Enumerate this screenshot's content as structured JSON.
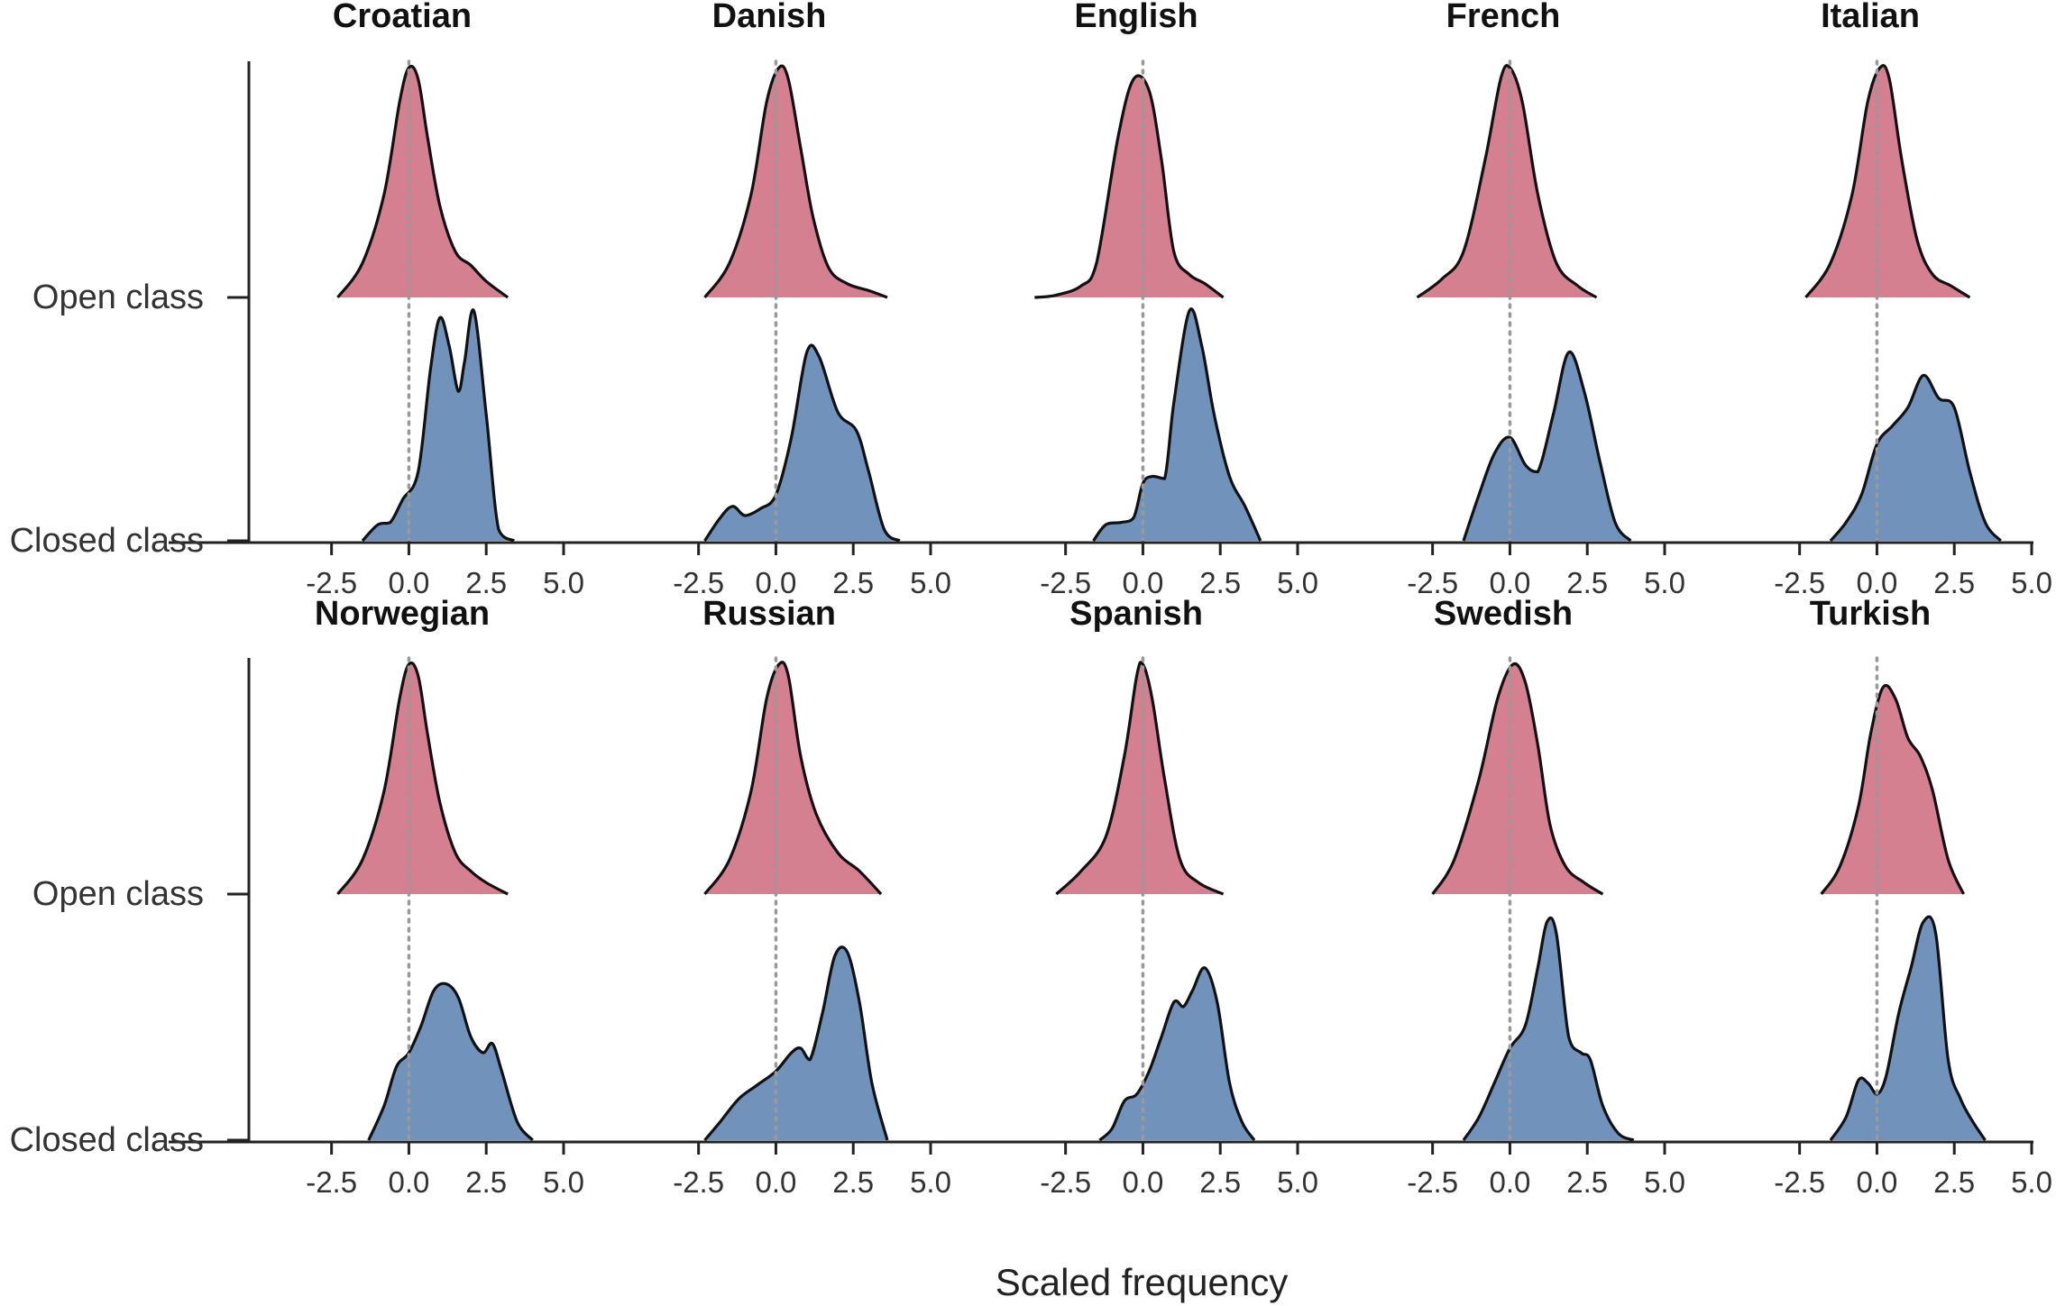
{
  "chart_data": {
    "type": "ridgeline-density",
    "xlabel": "Scaled frequency",
    "ylabels": [
      "Open class",
      "Closed class"
    ],
    "x_ticks": [
      -2.5,
      0.0,
      2.5,
      5.0
    ],
    "x_tick_labels": [
      "-2.5",
      "0.0",
      "2.5",
      "5.0"
    ],
    "xlim": [
      -5.2,
      5.0
    ],
    "reference_line_x": 0,
    "colors": {
      "Open class": "#d48090",
      "Closed class": "#7092bb",
      "outline": "#111111",
      "reference": "#999999"
    },
    "panels": [
      {
        "title": "Croatian",
        "open": {
          "x": [
            -2.3,
            -1.5,
            -0.8,
            -0.3,
            0.0,
            0.3,
            0.6,
            1.0,
            1.5,
            2.0,
            2.5,
            3.2
          ],
          "y": [
            0.0,
            0.15,
            0.45,
            0.85,
            1.0,
            0.95,
            0.7,
            0.4,
            0.2,
            0.14,
            0.07,
            0.0
          ]
        },
        "closed": {
          "x": [
            -1.5,
            -1.0,
            -0.6,
            -0.2,
            0.3,
            0.7,
            1.0,
            1.3,
            1.6,
            1.8,
            2.1,
            2.5,
            2.9,
            3.4
          ],
          "y": [
            0.0,
            0.07,
            0.08,
            0.18,
            0.3,
            0.75,
            0.97,
            0.85,
            0.65,
            0.78,
            1.0,
            0.55,
            0.05,
            0.0
          ]
        }
      },
      {
        "title": "Danish",
        "open": {
          "x": [
            -2.3,
            -1.5,
            -0.8,
            -0.3,
            0.1,
            0.4,
            0.8,
            1.2,
            1.7,
            2.3,
            3.0,
            3.6
          ],
          "y": [
            0.0,
            0.15,
            0.45,
            0.85,
            1.0,
            0.95,
            0.65,
            0.35,
            0.13,
            0.06,
            0.03,
            0.0
          ]
        },
        "closed": {
          "x": [
            -2.3,
            -1.8,
            -1.4,
            -1.0,
            -0.5,
            0.0,
            0.5,
            1.0,
            1.4,
            2.0,
            2.6,
            3.0,
            3.5,
            4.0
          ],
          "y": [
            0.0,
            0.1,
            0.15,
            0.11,
            0.14,
            0.2,
            0.45,
            0.82,
            0.8,
            0.56,
            0.48,
            0.3,
            0.05,
            0.0
          ]
        }
      },
      {
        "title": "English",
        "open": {
          "x": [
            -3.5,
            -2.8,
            -2.0,
            -1.5,
            -0.8,
            -0.3,
            0.2,
            0.6,
            1.0,
            1.5,
            2.0,
            2.6
          ],
          "y": [
            0.0,
            0.01,
            0.05,
            0.15,
            0.7,
            0.95,
            0.9,
            0.6,
            0.2,
            0.1,
            0.06,
            0.0
          ]
        },
        "closed": {
          "x": [
            -1.6,
            -1.2,
            -0.7,
            -0.3,
            0.0,
            0.3,
            0.7,
            1.0,
            1.5,
            1.9,
            2.3,
            2.8,
            3.3,
            3.8
          ],
          "y": [
            0.0,
            0.07,
            0.08,
            0.1,
            0.25,
            0.28,
            0.27,
            0.6,
            1.0,
            0.85,
            0.55,
            0.28,
            0.15,
            0.0
          ]
        }
      },
      {
        "title": "French",
        "open": {
          "x": [
            -3.0,
            -2.2,
            -1.5,
            -0.8,
            -0.3,
            0.0,
            0.4,
            0.9,
            1.5,
            2.2,
            2.8
          ],
          "y": [
            0.0,
            0.08,
            0.2,
            0.6,
            0.95,
            1.0,
            0.85,
            0.45,
            0.15,
            0.05,
            0.0
          ]
        },
        "closed": {
          "x": [
            -1.5,
            -1.0,
            -0.5,
            0.0,
            0.5,
            0.9,
            1.4,
            1.9,
            2.4,
            2.9,
            3.4,
            3.9
          ],
          "y": [
            0.0,
            0.2,
            0.38,
            0.45,
            0.33,
            0.3,
            0.55,
            0.82,
            0.65,
            0.35,
            0.08,
            0.0
          ]
        }
      },
      {
        "title": "Italian",
        "open": {
          "x": [
            -2.3,
            -1.5,
            -0.8,
            -0.3,
            0.1,
            0.4,
            0.8,
            1.3,
            1.8,
            2.4,
            3.0
          ],
          "y": [
            0.0,
            0.15,
            0.45,
            0.85,
            1.0,
            0.95,
            0.6,
            0.25,
            0.1,
            0.05,
            0.0
          ]
        },
        "closed": {
          "x": [
            -1.5,
            -1.0,
            -0.5,
            0.0,
            0.5,
            1.0,
            1.5,
            2.0,
            2.5,
            3.0,
            3.5,
            4.0
          ],
          "y": [
            0.0,
            0.08,
            0.2,
            0.42,
            0.5,
            0.58,
            0.72,
            0.62,
            0.58,
            0.3,
            0.08,
            0.0
          ]
        }
      },
      {
        "title": "Norwegian",
        "open": {
          "x": [
            -2.3,
            -1.5,
            -0.8,
            -0.3,
            0.0,
            0.3,
            0.6,
            1.0,
            1.5,
            2.0,
            2.5,
            3.2
          ],
          "y": [
            0.0,
            0.15,
            0.45,
            0.85,
            1.0,
            0.95,
            0.7,
            0.4,
            0.18,
            0.1,
            0.05,
            0.0
          ]
        },
        "closed": {
          "x": [
            -1.3,
            -0.8,
            -0.4,
            0.0,
            0.4,
            0.8,
            1.2,
            1.6,
            2.0,
            2.4,
            2.7,
            3.0,
            3.5,
            4.0
          ],
          "y": [
            0.0,
            0.15,
            0.32,
            0.38,
            0.5,
            0.65,
            0.68,
            0.62,
            0.45,
            0.38,
            0.42,
            0.3,
            0.08,
            0.0
          ]
        }
      },
      {
        "title": "Russian",
        "open": {
          "x": [
            -2.3,
            -1.5,
            -0.8,
            -0.3,
            0.1,
            0.4,
            0.8,
            1.3,
            2.0,
            2.7,
            3.4
          ],
          "y": [
            0.0,
            0.15,
            0.45,
            0.85,
            1.0,
            0.95,
            0.6,
            0.35,
            0.18,
            0.1,
            0.0
          ]
        },
        "closed": {
          "x": [
            -2.3,
            -1.8,
            -1.2,
            -0.6,
            0.0,
            0.5,
            0.8,
            1.1,
            1.5,
            1.9,
            2.3,
            2.7,
            3.1,
            3.6
          ],
          "y": [
            0.0,
            0.08,
            0.18,
            0.24,
            0.3,
            0.38,
            0.4,
            0.35,
            0.55,
            0.8,
            0.82,
            0.6,
            0.25,
            0.0
          ]
        }
      },
      {
        "title": "Spanish",
        "open": {
          "x": [
            -2.8,
            -2.0,
            -1.2,
            -0.6,
            -0.2,
            0.0,
            0.3,
            0.7,
            1.2,
            1.8,
            2.6
          ],
          "y": [
            0.0,
            0.1,
            0.25,
            0.6,
            0.95,
            1.0,
            0.85,
            0.5,
            0.15,
            0.05,
            0.0
          ]
        },
        "closed": {
          "x": [
            -1.4,
            -1.0,
            -0.6,
            -0.2,
            0.2,
            0.6,
            1.0,
            1.3,
            1.6,
            2.0,
            2.4,
            2.8,
            3.2,
            3.6
          ],
          "y": [
            0.0,
            0.05,
            0.17,
            0.2,
            0.3,
            0.45,
            0.6,
            0.58,
            0.65,
            0.75,
            0.6,
            0.25,
            0.08,
            0.0
          ]
        }
      },
      {
        "title": "Swedish",
        "open": {
          "x": [
            -2.5,
            -1.8,
            -1.0,
            -0.4,
            0.1,
            0.5,
            0.9,
            1.3,
            1.8,
            2.4,
            3.0
          ],
          "y": [
            0.0,
            0.15,
            0.5,
            0.85,
            1.0,
            0.92,
            0.65,
            0.3,
            0.12,
            0.05,
            0.0
          ]
        },
        "closed": {
          "x": [
            -1.5,
            -1.0,
            -0.5,
            0.0,
            0.5,
            0.9,
            1.2,
            1.5,
            1.9,
            2.3,
            2.6,
            3.0,
            3.5,
            4.0
          ],
          "y": [
            0.0,
            0.1,
            0.25,
            0.4,
            0.5,
            0.75,
            0.95,
            0.9,
            0.45,
            0.38,
            0.35,
            0.15,
            0.03,
            0.0
          ]
        }
      },
      {
        "title": "Turkish",
        "open": {
          "x": [
            -1.8,
            -1.2,
            -0.6,
            -0.2,
            0.2,
            0.6,
            1.0,
            1.4,
            1.8,
            2.3,
            2.8
          ],
          "y": [
            0.0,
            0.12,
            0.38,
            0.7,
            0.9,
            0.85,
            0.68,
            0.6,
            0.45,
            0.15,
            0.0
          ]
        },
        "closed": {
          "x": [
            -1.5,
            -1.0,
            -0.6,
            -0.3,
            0.0,
            0.3,
            0.7,
            1.1,
            1.5,
            1.9,
            2.3,
            2.7,
            3.1,
            3.5
          ],
          "y": [
            0.0,
            0.1,
            0.26,
            0.25,
            0.2,
            0.28,
            0.55,
            0.75,
            0.95,
            0.9,
            0.35,
            0.18,
            0.08,
            0.0
          ]
        }
      }
    ]
  }
}
